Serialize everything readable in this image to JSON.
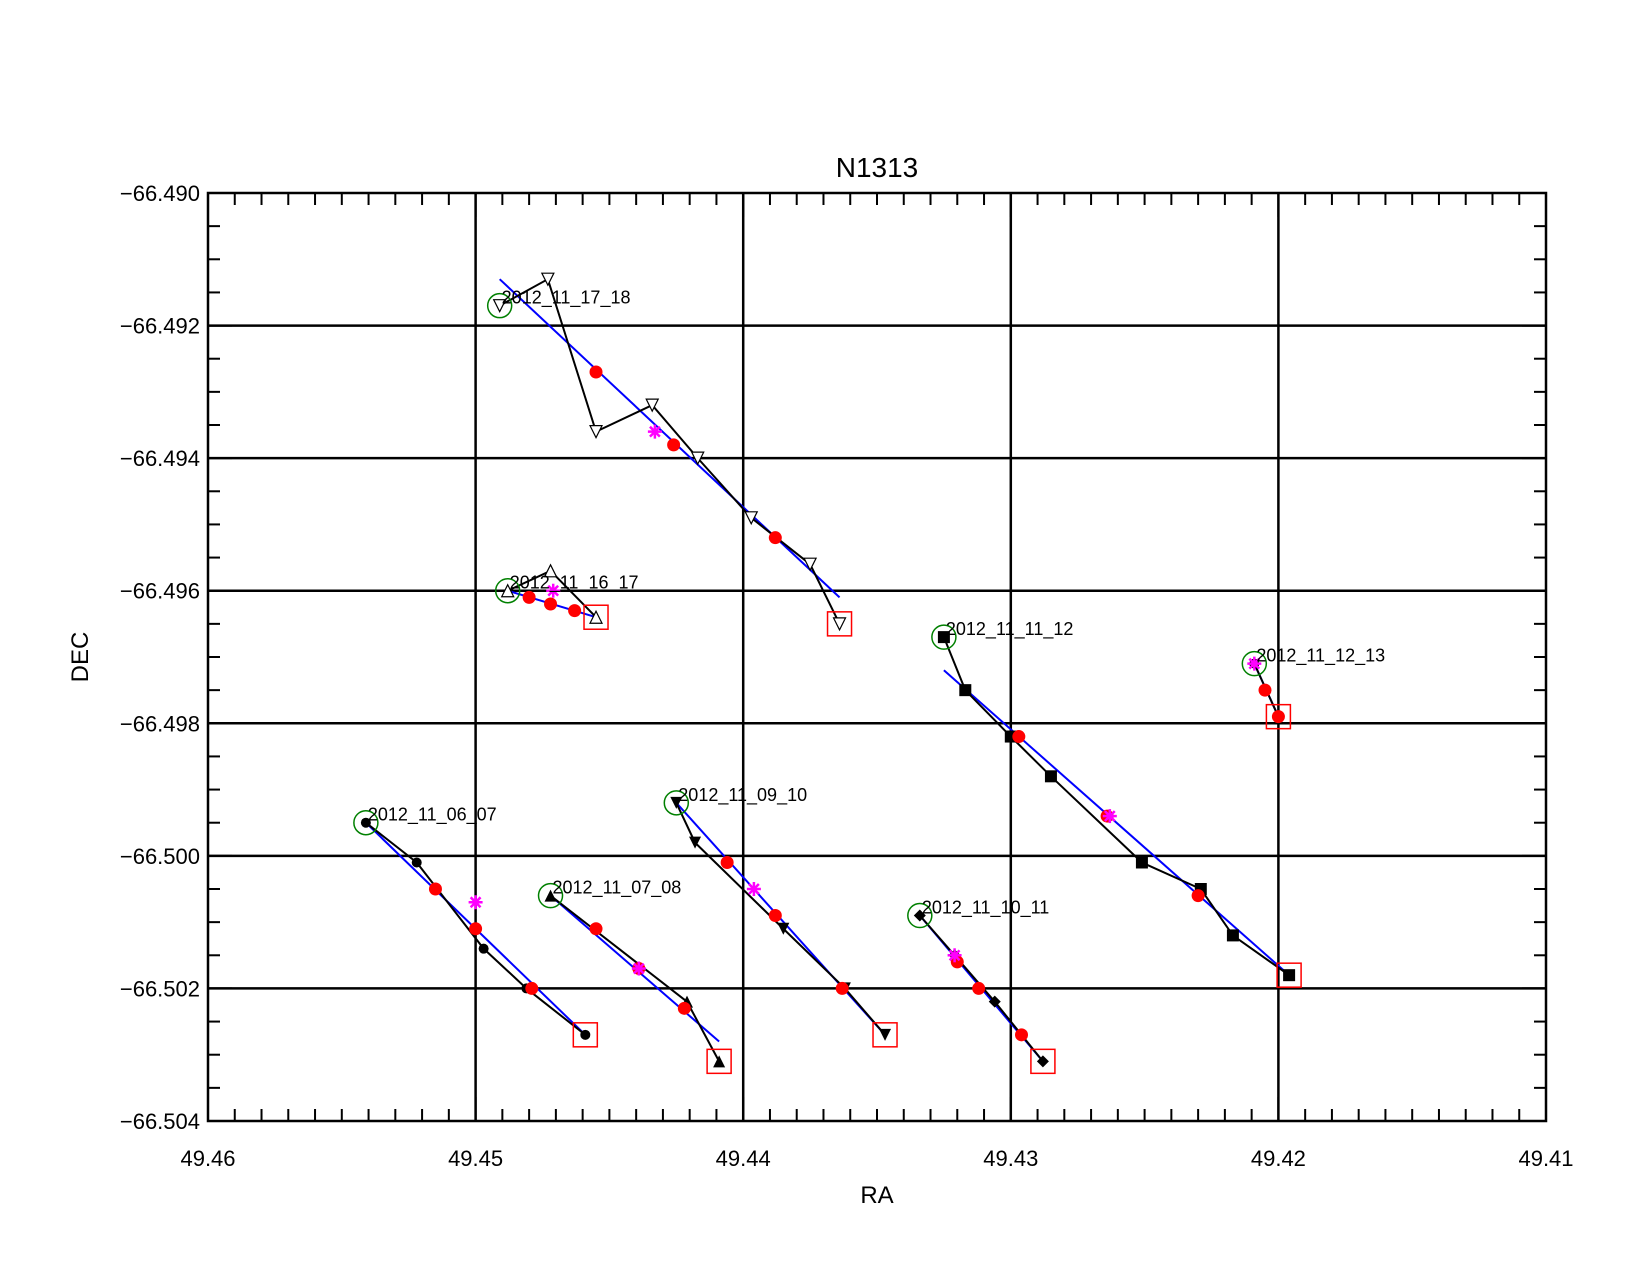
{
  "chart_data": {
    "type": "scatter",
    "title": "N1313",
    "xlabel": "RA",
    "ylabel": "DEC",
    "xlim": [
      49.46,
      49.41
    ],
    "ylim": [
      -66.504,
      -66.49
    ],
    "x_reversed": true,
    "grid": true,
    "x_ticks": [
      49.46,
      49.45,
      49.44,
      49.43,
      49.42,
      49.41
    ],
    "x_tick_labels": [
      "49.46",
      "49.45",
      "49.44",
      "49.43",
      "49.42",
      "49.41"
    ],
    "y_ticks": [
      -66.49,
      -66.492,
      -66.494,
      -66.496,
      -66.498,
      -66.5,
      -66.502,
      -66.504
    ],
    "y_tick_labels": [
      "−66.490",
      "−66.492",
      "−66.494",
      "−66.496",
      "−66.498",
      "−66.500",
      "−66.502",
      "−66.504"
    ],
    "colors": {
      "track": "#000000",
      "fit": "#0000ff",
      "red_points": "#ff0000",
      "magenta_points": "#ff00ff",
      "start_circle": "#008000",
      "end_square": "#ff0000",
      "grid": "#000000"
    },
    "series": [
      {
        "label": "2012_11_06_07",
        "marker": "filled-circle",
        "track": [
          [
            49.4541,
            -66.4995
          ],
          [
            49.4522,
            -66.5001
          ],
          [
            49.4497,
            -66.5014
          ],
          [
            49.4481,
            -66.502
          ],
          [
            49.4459,
            -66.5027
          ]
        ],
        "fit": [
          [
            49.4541,
            -66.4995
          ],
          [
            49.4459,
            -66.5027
          ]
        ],
        "red": [
          [
            49.4515,
            -66.5005
          ],
          [
            49.45,
            -66.5011
          ],
          [
            49.4479,
            -66.502
          ]
        ],
        "magenta": [
          [
            49.45,
            -66.5007
          ]
        ],
        "start": [
          49.4541,
          -66.4995
        ],
        "end": [
          49.4459,
          -66.5027
        ]
      },
      {
        "label": "2012_11_07_08",
        "marker": "filled-triangle-up",
        "track": [
          [
            49.4472,
            -66.5006
          ],
          [
            49.4421,
            -66.5022
          ],
          [
            49.4409,
            -66.5031
          ]
        ],
        "fit": [
          [
            49.4472,
            -66.5006
          ],
          [
            49.4409,
            -66.5028
          ]
        ],
        "red": [
          [
            49.4455,
            -66.5011
          ],
          [
            49.4439,
            -66.5017
          ],
          [
            49.4422,
            -66.5023
          ]
        ],
        "magenta": [
          [
            49.4439,
            -66.5017
          ]
        ],
        "start": [
          49.4472,
          -66.5006
        ],
        "end": [
          49.4409,
          -66.5031
        ]
      },
      {
        "label": "2012_11_09_10",
        "marker": "filled-triangle-down",
        "track": [
          [
            49.4425,
            -66.4992
          ],
          [
            49.4418,
            -66.4998
          ],
          [
            49.4385,
            -66.5011
          ],
          [
            49.4362,
            -66.502
          ],
          [
            49.4347,
            -66.5027
          ]
        ],
        "fit": [
          [
            49.4425,
            -66.4992
          ],
          [
            49.4347,
            -66.5027
          ]
        ],
        "red": [
          [
            49.4406,
            -66.5001
          ],
          [
            49.4388,
            -66.5009
          ],
          [
            49.4363,
            -66.502
          ]
        ],
        "magenta": [
          [
            49.4396,
            -66.5005
          ]
        ],
        "start": [
          49.4425,
          -66.4992
        ],
        "end": [
          49.4347,
          -66.5027
        ]
      },
      {
        "label": "2012_11_10_11",
        "marker": "filled-diamond",
        "track": [
          [
            49.4334,
            -66.5009
          ],
          [
            49.4321,
            -66.5015
          ],
          [
            49.4306,
            -66.5022
          ],
          [
            49.4288,
            -66.5031
          ]
        ],
        "fit": [
          [
            49.4334,
            -66.5009
          ],
          [
            49.4288,
            -66.5031
          ]
        ],
        "red": [
          [
            49.432,
            -66.5016
          ],
          [
            49.4312,
            -66.502
          ],
          [
            49.4296,
            -66.5027
          ]
        ],
        "magenta": [
          [
            49.4321,
            -66.5015
          ]
        ],
        "start": [
          49.4334,
          -66.5009
        ],
        "end": [
          49.4288,
          -66.5031
        ]
      },
      {
        "label": "2012_11_11_12",
        "marker": "filled-square",
        "track": [
          [
            49.4325,
            -66.4967
          ],
          [
            49.4317,
            -66.4975
          ],
          [
            49.43,
            -66.4982
          ],
          [
            49.4285,
            -66.4988
          ],
          [
            49.4251,
            -66.5001
          ],
          [
            49.4229,
            -66.5005
          ],
          [
            49.4217,
            -66.5012
          ],
          [
            49.4196,
            -66.5018
          ]
        ],
        "fit": [
          [
            49.4325,
            -66.4972
          ],
          [
            49.4196,
            -66.5018
          ]
        ],
        "red": [
          [
            49.4297,
            -66.4982
          ],
          [
            49.4264,
            -66.4994
          ],
          [
            49.423,
            -66.5006
          ]
        ],
        "magenta": [
          [
            49.4263,
            -66.4994
          ]
        ],
        "start": [
          49.4325,
          -66.4967
        ],
        "end": [
          49.4196,
          -66.5018
        ]
      },
      {
        "label": "2012_11_12_13",
        "marker": "filled-circle",
        "track": [
          [
            49.4209,
            -66.4971
          ],
          [
            49.42,
            -66.4979
          ]
        ],
        "fit": [
          [
            49.4209,
            -66.4971
          ],
          [
            49.42,
            -66.4979
          ]
        ],
        "red": [
          [
            49.4205,
            -66.4975
          ],
          [
            49.42,
            -66.4979
          ]
        ],
        "magenta": [
          [
            49.4209,
            -66.4971
          ]
        ],
        "start": [
          49.4209,
          -66.4971
        ],
        "end": [
          49.42,
          -66.4979
        ]
      },
      {
        "label": "2012_11_16_17",
        "marker": "open-triangle-up",
        "track": [
          [
            49.4488,
            -66.496
          ],
          [
            49.4472,
            -66.4957
          ],
          [
            49.4455,
            -66.4964
          ]
        ],
        "fit": [
          [
            49.4488,
            -66.496
          ],
          [
            49.4455,
            -66.4964
          ]
        ],
        "red": [
          [
            49.448,
            -66.4961
          ],
          [
            49.4472,
            -66.4962
          ],
          [
            49.4463,
            -66.4963
          ]
        ],
        "magenta": [
          [
            49.4471,
            -66.496
          ]
        ],
        "start": [
          49.4488,
          -66.496
        ],
        "end": [
          49.4455,
          -66.4964
        ]
      },
      {
        "label": "2012_11_17_18",
        "marker": "open-triangle-down",
        "track": [
          [
            49.4491,
            -66.4917
          ],
          [
            49.4473,
            -66.4913
          ],
          [
            49.4455,
            -66.4936
          ],
          [
            49.4434,
            -66.4932
          ],
          [
            49.4417,
            -66.494
          ],
          [
            49.4397,
            -66.4949
          ],
          [
            49.4375,
            -66.4956
          ],
          [
            49.4364,
            -66.4965
          ]
        ],
        "fit": [
          [
            49.4491,
            -66.4913
          ],
          [
            49.4364,
            -66.4961
          ]
        ],
        "red": [
          [
            49.4455,
            -66.4927
          ],
          [
            49.4426,
            -66.4938
          ],
          [
            49.4388,
            -66.4952
          ]
        ],
        "magenta": [
          [
            49.4433,
            -66.4936
          ]
        ],
        "start": [
          49.4491,
          -66.4917
        ],
        "end": [
          49.4364,
          -66.4965
        ]
      }
    ]
  }
}
